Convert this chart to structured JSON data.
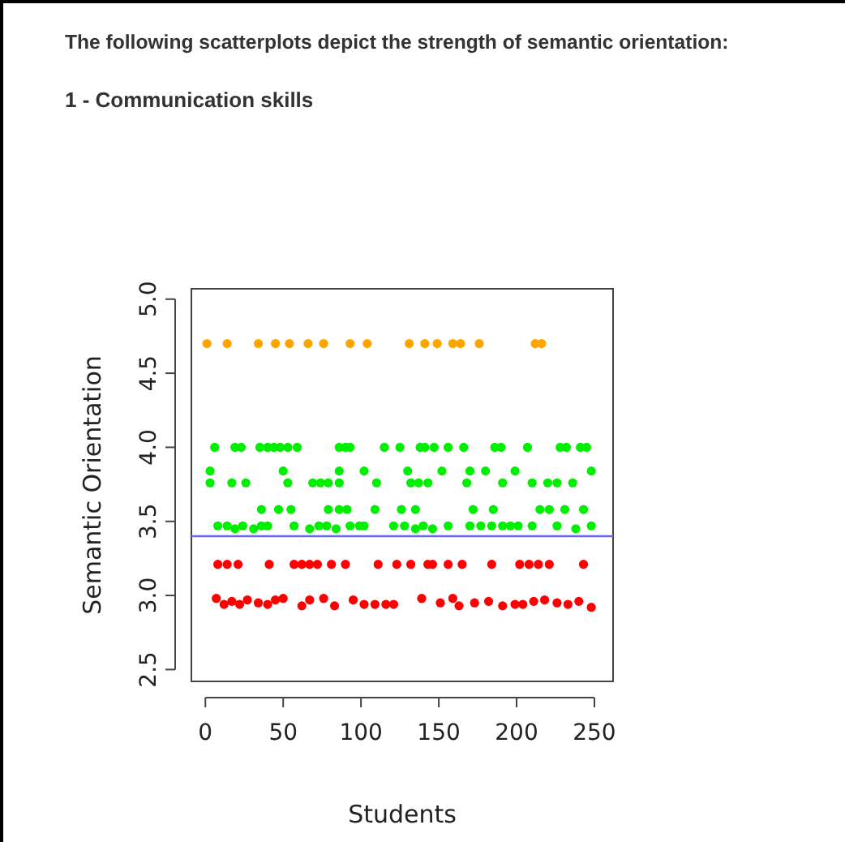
{
  "chart_data": {
    "type": "scatter",
    "title": "The following scatterplots depict the strength of semantic orientation:",
    "subtitle": "1 - Communication skills",
    "xlabel": "Students",
    "ylabel": "Semantic Orientation",
    "xlim": [
      -9,
      262
    ],
    "ylim": [
      2.42,
      5.07
    ],
    "xticks": [
      0,
      50,
      100,
      150,
      200,
      250
    ],
    "yticks": [
      {
        "value": 2.5,
        "label": "2.5"
      },
      {
        "value": 3,
        "label": "3.0"
      },
      {
        "value": 3.5,
        "label": "3.5"
      },
      {
        "value": 4,
        "label": "4.0"
      },
      {
        "value": 4.5,
        "label": "4.5"
      },
      {
        "value": 5,
        "label": "5.0"
      }
    ],
    "marker": "circle",
    "grid": false,
    "ref_lines": [
      {
        "axis": "y",
        "value": 3.4,
        "color": "#6a6ae0"
      }
    ],
    "series": [
      {
        "color": "#ffa500",
        "x": [
          1,
          14,
          34,
          45,
          54,
          66,
          76,
          93,
          104,
          131,
          141,
          149,
          159,
          164,
          176,
          212,
          216
        ],
        "values": [
          4.7,
          4.7,
          4.7,
          4.7,
          4.7,
          4.7,
          4.7,
          4.7,
          4.7,
          4.7,
          4.7,
          4.7,
          4.7,
          4.7,
          4.7,
          4.7,
          4.7
        ]
      },
      {
        "color": "#00ee00",
        "x": [
          6,
          19,
          23,
          35,
          40,
          44,
          48,
          53,
          59,
          86,
          90,
          93,
          115,
          125,
          138,
          141,
          147,
          156,
          166,
          186,
          190,
          207,
          228,
          232,
          241,
          245
        ],
        "values": [
          4,
          4,
          4,
          4,
          4,
          4,
          4,
          4,
          4,
          4,
          4,
          4,
          4,
          4,
          4,
          4,
          4,
          4,
          4,
          4,
          4,
          4,
          4,
          4,
          4,
          4
        ]
      },
      {
        "color": "#00ee00",
        "x": [
          3,
          50,
          86,
          102,
          130,
          152,
          170,
          180,
          199,
          248
        ],
        "values": [
          3.84,
          3.84,
          3.84,
          3.84,
          3.84,
          3.84,
          3.84,
          3.84,
          3.84,
          3.84
        ]
      },
      {
        "color": "#00ee00",
        "x": [
          3,
          17,
          26,
          53,
          69,
          74,
          79,
          86,
          110,
          132,
          137,
          143,
          168,
          191,
          210,
          220,
          226,
          236
        ],
        "values": [
          3.76,
          3.76,
          3.76,
          3.76,
          3.76,
          3.76,
          3.76,
          3.76,
          3.76,
          3.76,
          3.76,
          3.76,
          3.76,
          3.76,
          3.76,
          3.76,
          3.76,
          3.76
        ]
      },
      {
        "color": "#00ee00",
        "x": [
          36,
          47,
          55,
          79,
          86,
          91,
          109,
          126,
          135,
          172,
          185,
          215,
          221,
          231,
          243
        ],
        "values": [
          3.58,
          3.58,
          3.58,
          3.58,
          3.58,
          3.58,
          3.58,
          3.58,
          3.58,
          3.58,
          3.58,
          3.58,
          3.58,
          3.58,
          3.58
        ]
      },
      {
        "color": "#00ee00",
        "x": [
          8,
          14,
          19,
          24,
          31,
          36,
          40,
          57,
          67,
          73,
          78,
          84,
          93,
          99,
          102,
          121,
          128,
          135,
          140,
          146,
          156,
          170,
          177,
          184,
          191,
          196,
          201,
          210,
          226,
          238,
          248
        ],
        "values": [
          3.47,
          3.47,
          3.45,
          3.47,
          3.45,
          3.47,
          3.47,
          3.47,
          3.45,
          3.47,
          3.47,
          3.45,
          3.47,
          3.47,
          3.47,
          3.47,
          3.47,
          3.45,
          3.47,
          3.45,
          3.47,
          3.47,
          3.47,
          3.47,
          3.47,
          3.47,
          3.47,
          3.47,
          3.47,
          3.45,
          3.47
        ]
      },
      {
        "color": "#ff0000",
        "x": [
          8,
          14,
          21,
          41,
          57,
          62,
          67,
          72,
          81,
          90,
          111,
          123,
          132,
          143,
          146,
          156,
          165,
          184,
          202,
          208,
          214,
          221,
          243
        ],
        "values": [
          3.21,
          3.21,
          3.21,
          3.21,
          3.21,
          3.21,
          3.21,
          3.21,
          3.21,
          3.21,
          3.21,
          3.21,
          3.21,
          3.21,
          3.21,
          3.21,
          3.21,
          3.21,
          3.21,
          3.21,
          3.21,
          3.21,
          3.21
        ]
      },
      {
        "color": "#ff0000",
        "x": [
          7,
          12,
          17,
          22,
          27,
          34,
          40,
          45,
          50,
          62,
          67,
          76,
          83,
          95,
          102,
          109,
          116,
          121,
          139,
          151,
          159,
          163,
          173,
          182,
          191,
          199,
          204,
          211,
          218,
          226,
          233,
          240,
          248
        ],
        "values": [
          2.98,
          2.94,
          2.96,
          2.94,
          2.97,
          2.95,
          2.94,
          2.97,
          2.98,
          2.93,
          2.97,
          2.98,
          2.93,
          2.97,
          2.94,
          2.94,
          2.94,
          2.94,
          2.98,
          2.95,
          2.98,
          2.93,
          2.95,
          2.96,
          2.93,
          2.94,
          2.94,
          2.96,
          2.97,
          2.95,
          2.94,
          2.96,
          2.92
        ]
      }
    ]
  }
}
